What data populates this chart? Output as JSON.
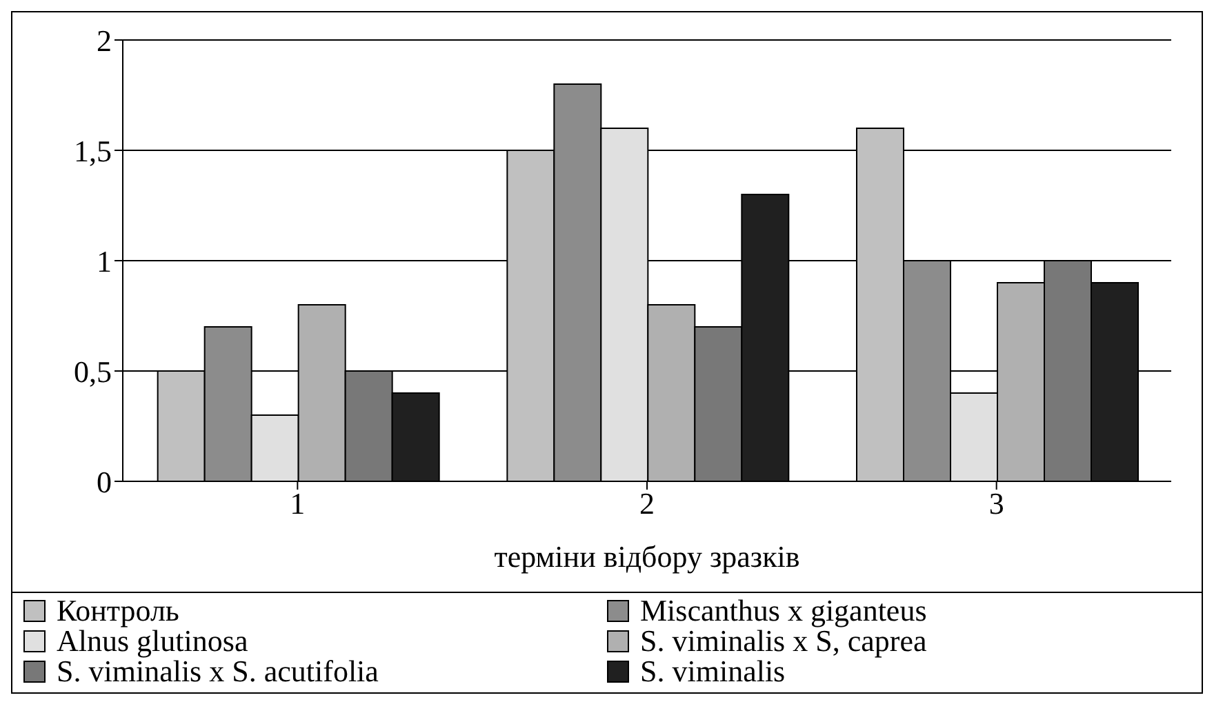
{
  "chart_data": {
    "type": "bar",
    "xlabel": "терміни відбору зразків",
    "categories": [
      "1",
      "2",
      "3"
    ],
    "series": [
      {
        "name": "Контроль",
        "color": "#c0c0c0",
        "values": [
          0.5,
          1.5,
          1.6
        ]
      },
      {
        "name": "Miscanthus x giganteus",
        "color": "#8c8c8c",
        "values": [
          0.7,
          1.8,
          1.0
        ]
      },
      {
        "name": "Alnus glutinosa",
        "color": "#e0e0e0",
        "values": [
          0.3,
          1.6,
          0.4
        ]
      },
      {
        "name": "S. viminalis x S, caprea",
        "color": "#b0b0b0",
        "values": [
          0.8,
          0.8,
          0.9
        ]
      },
      {
        "name": "S. viminalis x S. acutifolia",
        "color": "#787878",
        "values": [
          0.5,
          0.7,
          1.0
        ]
      },
      {
        "name": "S. viminalis",
        "color": "#202020",
        "values": [
          0.4,
          1.3,
          0.9
        ]
      }
    ],
    "ylim": [
      0,
      2
    ],
    "yticks": [
      0,
      {
        "value": 0.5,
        "label": "0,5"
      },
      1,
      {
        "value": 1.5,
        "label": "1,5"
      },
      2
    ],
    "grid": "y",
    "legend": "bottom"
  }
}
